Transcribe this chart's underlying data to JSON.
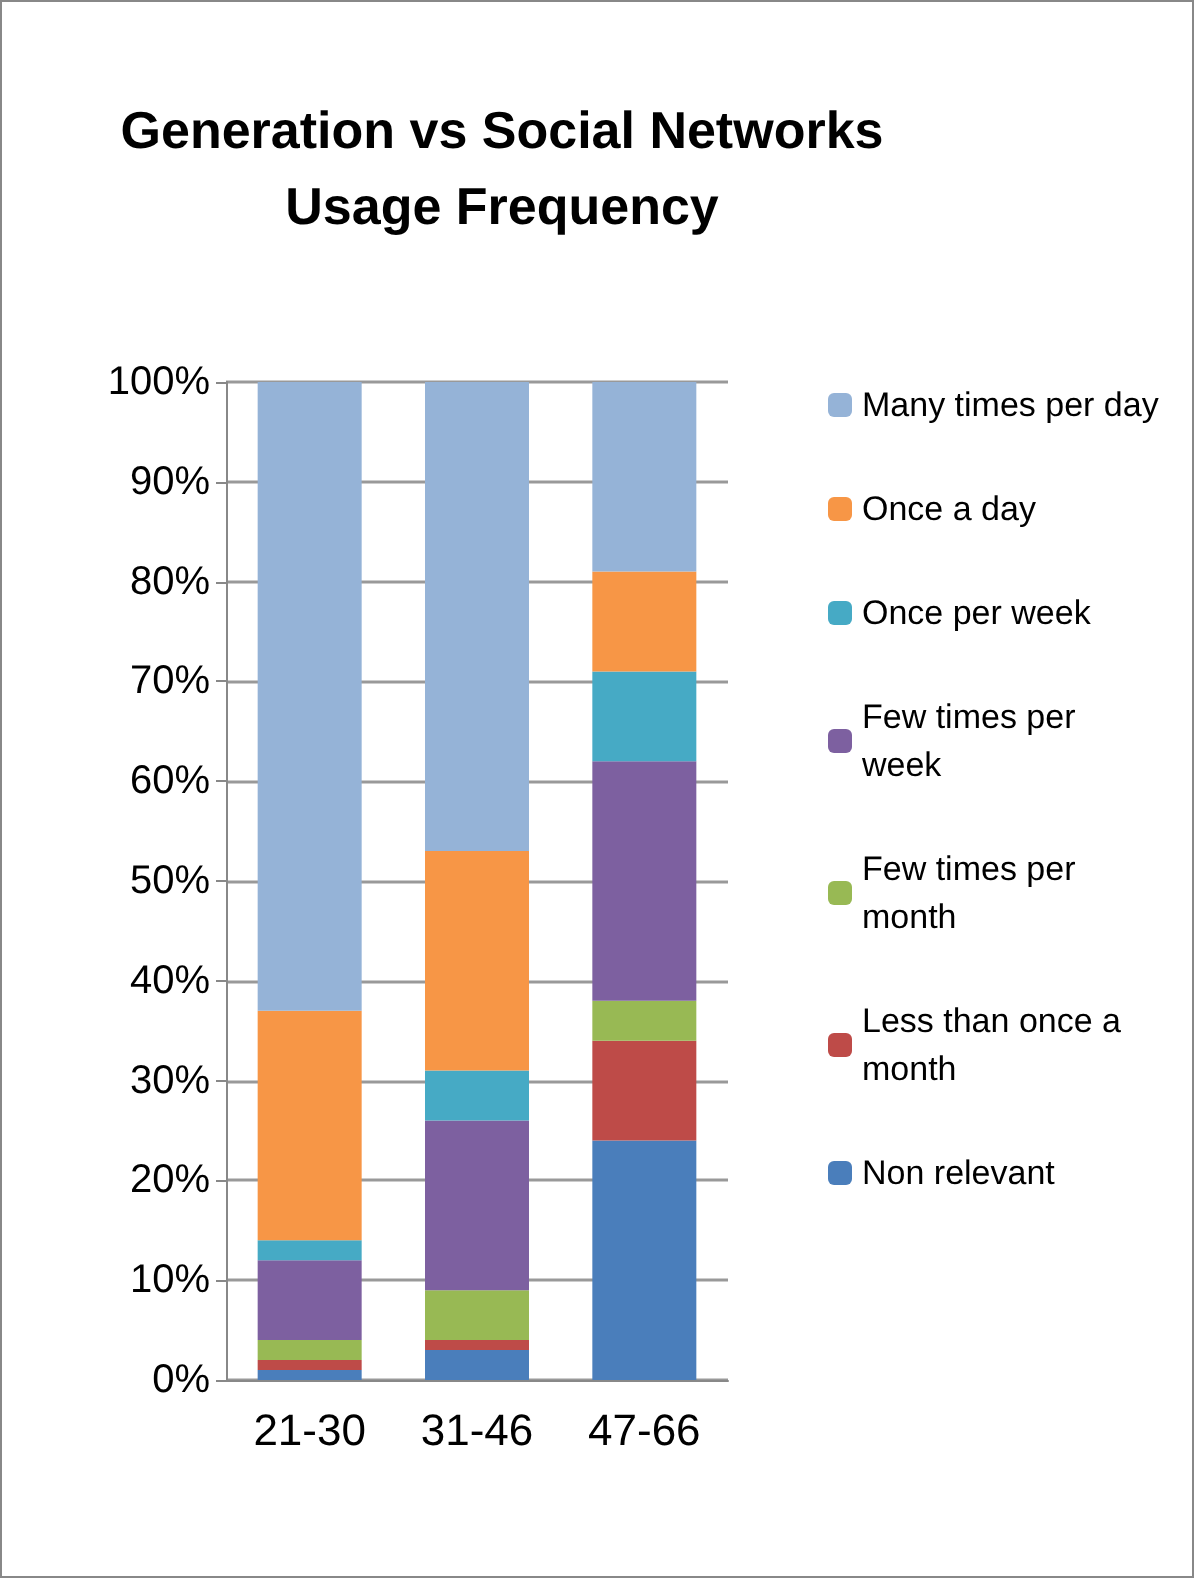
{
  "chart_data": {
    "type": "bar",
    "stacked": true,
    "title": "Generation vs Social Networks\nUsage Frequency",
    "categories": [
      "21-30",
      "31-46",
      "47-66"
    ],
    "series": [
      {
        "name": "Non relevant",
        "color": "#4a7ebb",
        "values": [
          1,
          3,
          24
        ]
      },
      {
        "name": "Less than once a month",
        "color": "#be4b48",
        "values": [
          1,
          1,
          10
        ]
      },
      {
        "name": "Few times per month",
        "color": "#98b954",
        "values": [
          2,
          5,
          4
        ]
      },
      {
        "name": "Few times per week",
        "color": "#7d60a0",
        "values": [
          8,
          17,
          24
        ]
      },
      {
        "name": "Once per week",
        "color": "#46aac5",
        "values": [
          2,
          5,
          9
        ]
      },
      {
        "name": "Once a day",
        "color": "#f79646",
        "values": [
          23,
          22,
          10
        ]
      },
      {
        "name": "Many times per day",
        "color": "#95b3d7",
        "values": [
          63,
          47,
          19
        ]
      }
    ],
    "ylim": [
      0,
      100
    ],
    "yticks": [
      {
        "value": 0,
        "label": "0%"
      },
      {
        "value": 10,
        "label": "10%"
      },
      {
        "value": 20,
        "label": "20%"
      },
      {
        "value": 30,
        "label": "30%"
      },
      {
        "value": 40,
        "label": "40%"
      },
      {
        "value": 50,
        "label": "50%"
      },
      {
        "value": 60,
        "label": "60%"
      },
      {
        "value": 70,
        "label": "70%"
      },
      {
        "value": 80,
        "label": "80%"
      },
      {
        "value": 90,
        "label": "90%"
      },
      {
        "value": 100,
        "label": "100%"
      }
    ],
    "grid": "y",
    "legend": "right"
  }
}
